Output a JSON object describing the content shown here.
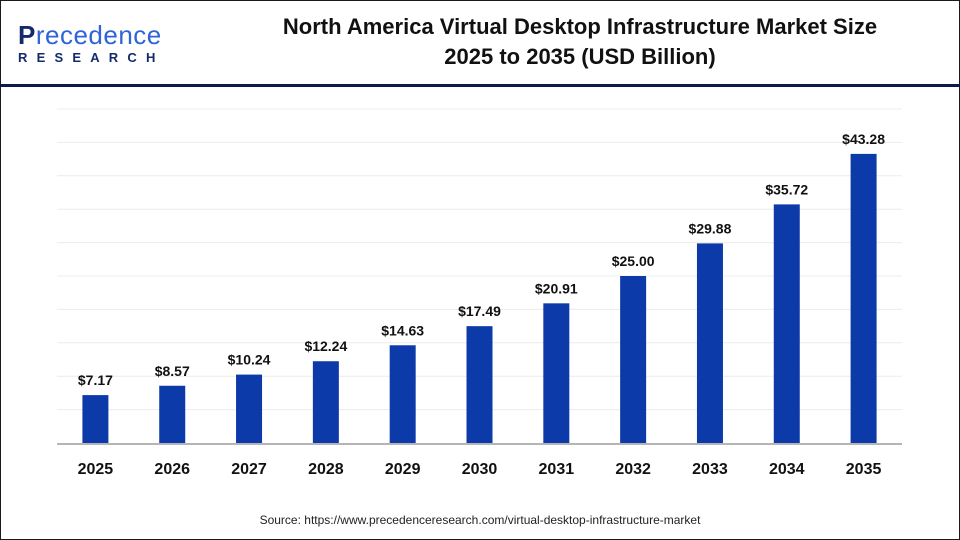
{
  "logo": {
    "top": "Precedence",
    "bottom": "RESEARCH"
  },
  "title_line1": "North America Virtual Desktop Infrastructure Market Size",
  "title_line2": "2025 to 2035 (USD Billion)",
  "source": "Source: https://www.precedenceresearch.com/virtual-desktop-infrastructure-market",
  "chart_data": {
    "type": "bar",
    "title": "North America Virtual Desktop Infrastructure Market Size 2025 to 2035 (USD Billion)",
    "categories": [
      "2025",
      "2026",
      "2027",
      "2028",
      "2029",
      "2030",
      "2031",
      "2032",
      "2033",
      "2034",
      "2035"
    ],
    "values": [
      7.17,
      8.57,
      10.24,
      12.24,
      14.63,
      17.49,
      20.91,
      25.0,
      29.88,
      35.72,
      43.28
    ],
    "data_labels": [
      "$7.17",
      "$8.57",
      "$10.24",
      "$12.24",
      "$14.63",
      "$17.49",
      "$20.91",
      "$25.00",
      "$29.88",
      "$35.72",
      "$43.28"
    ],
    "xlabel": "",
    "ylabel": "",
    "ylim": [
      0,
      50
    ],
    "grid": true,
    "bar_color": "#0d3aa9"
  }
}
